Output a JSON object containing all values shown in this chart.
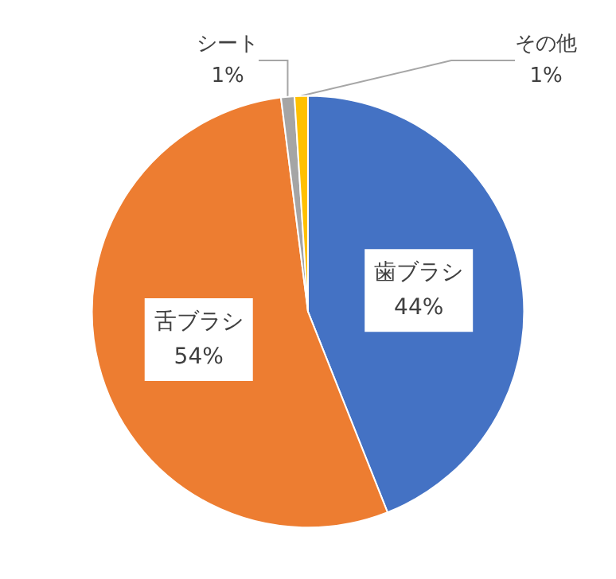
{
  "chart_data": {
    "type": "pie",
    "categories": [
      "歯ブラシ",
      "舌ブラシ",
      "シート",
      "その他"
    ],
    "values": [
      44,
      54,
      1,
      1
    ],
    "colors": [
      "#4472c4",
      "#ed7d31",
      "#a5a5a5",
      "#ffc000"
    ],
    "value_labels": [
      "44%",
      "54%",
      "1%",
      "1%"
    ],
    "legend": false
  }
}
